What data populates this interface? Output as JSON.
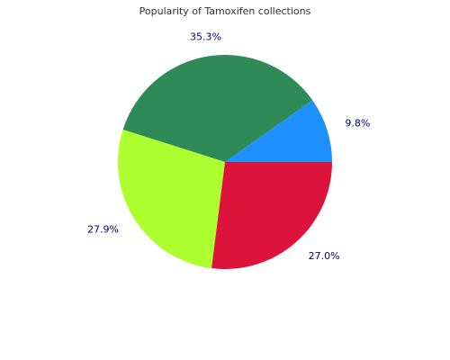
{
  "chart_data": {
    "type": "pie",
    "title": "Popularity of Tamoxifen collections",
    "values": [
      9.8,
      35.3,
      27.9,
      27.0
    ],
    "value_labels": [
      "9.8%",
      "35.3%",
      "27.9%",
      "27.0%"
    ],
    "colors": [
      "#1e90ff",
      "#2e8b57",
      "#adff2f",
      "#dc143c"
    ]
  }
}
